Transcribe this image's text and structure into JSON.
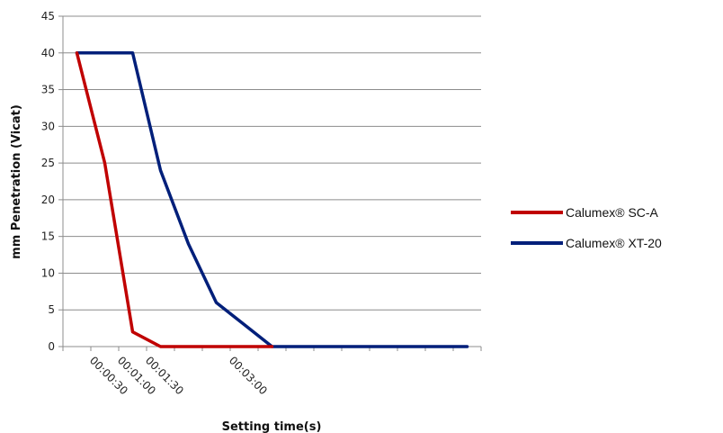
{
  "chart_data": {
    "type": "line",
    "title": "",
    "xlabel": "Setting time(s)",
    "ylabel": "mm Penetration (Vicat)",
    "ylim": [
      0,
      45
    ],
    "yticks": [
      0,
      5,
      10,
      15,
      20,
      25,
      30,
      35,
      40,
      45
    ],
    "grid": true,
    "legend_position": "right",
    "x_tick_labels": [
      "00:00:30",
      "00:01:00",
      "00:01:30",
      "00:03:00"
    ],
    "x_tick_label_indices": [
      1,
      2,
      3,
      6
    ],
    "x_slot_count": 15,
    "series": [
      {
        "name": "Calumex® SC-A",
        "color": "#c00000",
        "x": [
          0,
          1,
          2,
          3,
          4,
          5,
          6,
          7
        ],
        "y": [
          40,
          25,
          2,
          0,
          0,
          0,
          0,
          0
        ]
      },
      {
        "name": "Calumex® XT-20",
        "color": "#001f7a",
        "x": [
          0,
          1,
          2,
          3,
          4,
          5,
          6,
          7,
          8,
          9,
          10,
          11,
          12,
          13,
          14
        ],
        "y": [
          40,
          40,
          40,
          24,
          14,
          6,
          3,
          0,
          0,
          0,
          0,
          0,
          0,
          0,
          0
        ]
      }
    ]
  }
}
